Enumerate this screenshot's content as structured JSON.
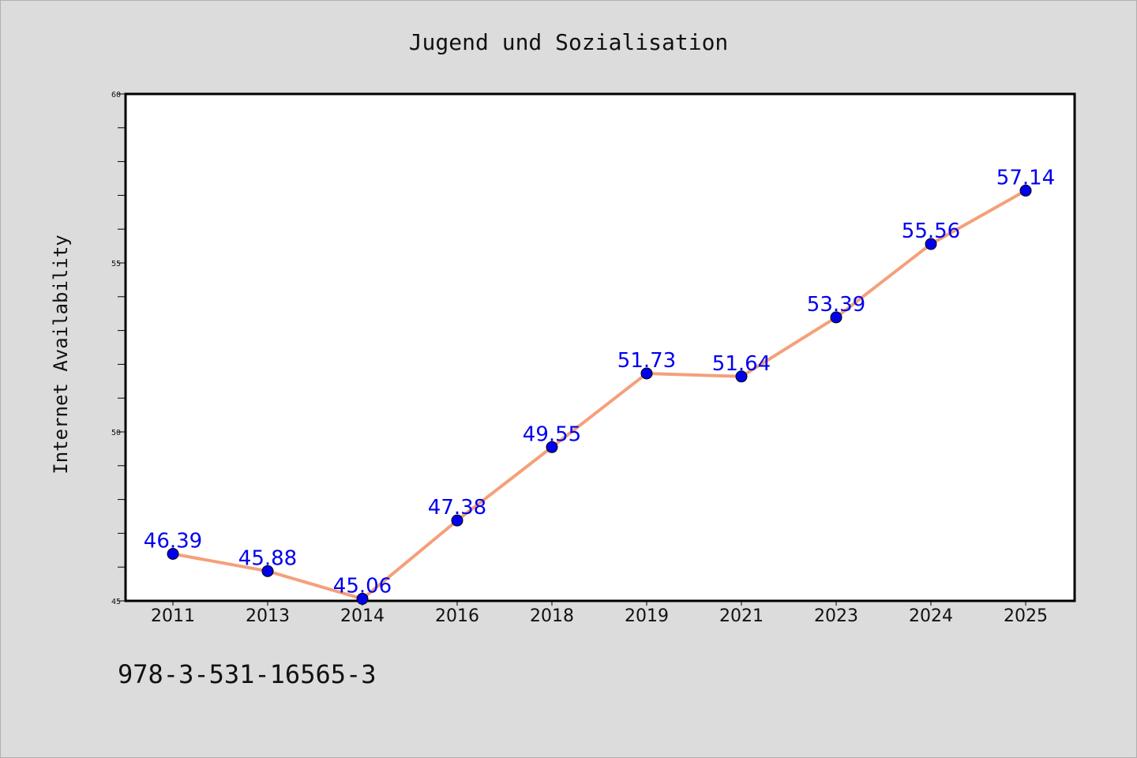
{
  "chart_data": {
    "type": "line",
    "title": "Jugend und Sozialisation",
    "xlabel": "",
    "ylabel": "Internet Availability",
    "categories": [
      "2011",
      "2013",
      "2014",
      "2016",
      "2018",
      "2019",
      "2021",
      "2023",
      "2024",
      "2025"
    ],
    "values": [
      46.39,
      45.88,
      45.06,
      47.38,
      49.55,
      51.73,
      51.64,
      53.39,
      55.56,
      57.14
    ],
    "data_labels": [
      "46.39",
      "45.88",
      "45.06",
      "47.38",
      "49.55",
      "51.73",
      "51.64",
      "53.39",
      "55.56",
      "57.14"
    ],
    "ylim": [
      45,
      60
    ],
    "yticks": [
      "45",
      "50",
      "55",
      "60"
    ],
    "grid": false,
    "legend": "none",
    "colors": {
      "line": "#f4a07a",
      "marker": "#0000ee",
      "label": "#0000ee",
      "background": "#dcdcdc",
      "plot_background": "#ffffff"
    }
  },
  "footer": {
    "isbn": "978-3-531-16565-3"
  }
}
